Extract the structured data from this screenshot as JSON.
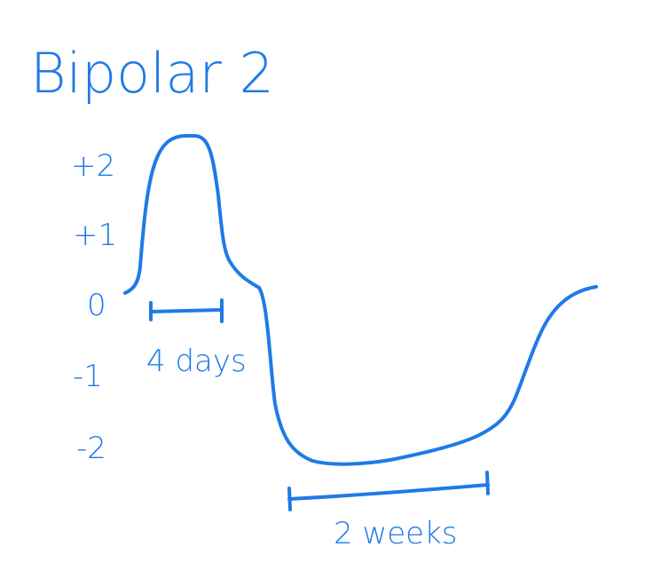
{
  "title": "Bipolar 2",
  "ink_color": "#1f7ae8",
  "background_color": "#ffffff",
  "scale_labels": [
    "+2",
    "+1",
    "0",
    "-1",
    "-2"
  ],
  "annotations": {
    "hypomania_duration": "4 days",
    "depression_duration": "2 weeks"
  },
  "chart_data": {
    "type": "line",
    "title": "Bipolar 2",
    "y_tick_labels": [
      "+2",
      "+1",
      "0",
      "-1",
      "-2"
    ],
    "ylim": [
      -2,
      2
    ],
    "grid": false,
    "series": [
      {
        "description_points": [
          {
            "x": 0,
            "y": 0
          },
          {
            "x": 2,
            "y": 1
          },
          {
            "x": 4,
            "y": 2.3
          },
          {
            "x": 8,
            "y": 2.3
          },
          {
            "x": 10,
            "y": 0.5
          },
          {
            "x": 14,
            "y": 0
          },
          {
            "x": 16,
            "y": -1.2
          },
          {
            "x": 18,
            "y": -2
          },
          {
            "x": 21,
            "y": -2.3
          },
          {
            "x": 25,
            "y": -2.3
          },
          {
            "x": 30,
            "y": -2.1
          },
          {
            "x": 35,
            "y": -1.8
          },
          {
            "x": 38,
            "y": -1.2
          },
          {
            "x": 41,
            "y": -0.3
          },
          {
            "x": 44,
            "y": 0
          }
        ]
      }
    ],
    "intervals": [
      {
        "label": "4 days"
      },
      {
        "label": "2 weeks"
      }
    ]
  }
}
